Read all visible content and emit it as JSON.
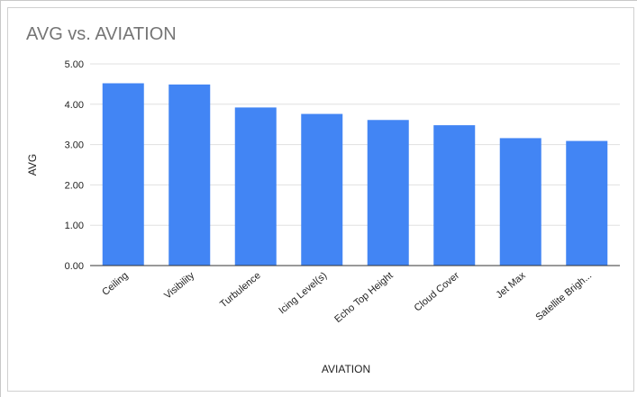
{
  "chart_data": {
    "type": "bar",
    "title": "AVG vs. AVIATION",
    "xlabel": "AVIATION",
    "ylabel": "AVG",
    "categories": [
      "Ceiling",
      "Visibility",
      "Turbulence",
      "Icing Level(s)",
      "Echo Top Height",
      "Cloud Cover",
      "Jet Max",
      "Satellite Brigh..."
    ],
    "values": [
      4.52,
      4.49,
      3.92,
      3.76,
      3.61,
      3.48,
      3.16,
      3.09
    ],
    "yticks": [
      "0.00",
      "1.00",
      "2.00",
      "3.00",
      "4.00",
      "5.00"
    ],
    "ylim": [
      0,
      5
    ],
    "grid": true,
    "legend": "none",
    "bar_color": "#4285f4"
  }
}
